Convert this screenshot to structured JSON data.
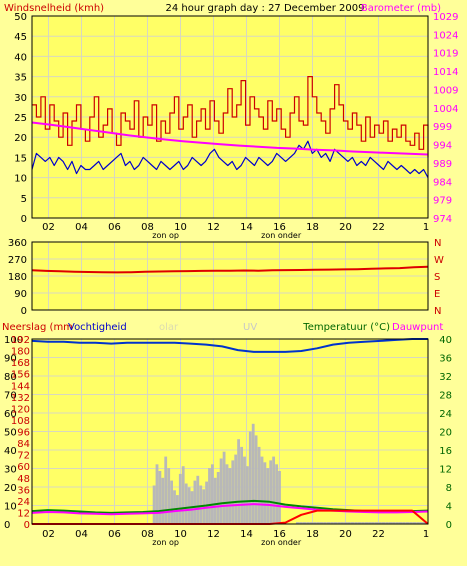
{
  "colors": {
    "bg": "#ffff99",
    "plot_bg": "#ffff66",
    "grid": "#d8d8c0",
    "wind": "#cc0000",
    "avg_wind": "#0000cc",
    "baro": "#ff00ff",
    "dir": "#dd0000",
    "humidity": "#0033cc",
    "solar": "#b8b8b8",
    "temp": "#008800",
    "dew": "#ff00ff",
    "rain": "#ff0000",
    "right_axis_green": "#006600"
  },
  "chart_data": [
    {
      "type": "line",
      "title": "24 hour graph day : 27 December 2009",
      "ylabel_left": "Windsnelheid (kmh)",
      "ylabel_right": "Barometer (mb)",
      "x_ticks": [
        "02",
        "04",
        "06",
        "08",
        "10",
        "12",
        "14",
        "16",
        "18",
        "20",
        "22",
        "1"
      ],
      "x_markers": [
        "zon op",
        "zon onder"
      ],
      "x_range": [
        1,
        25
      ],
      "y_left_ticks": [
        "0",
        "5",
        "10",
        "15",
        "20",
        "25",
        "30",
        "35",
        "40",
        "45",
        "50"
      ],
      "y_left_range": [
        0,
        50
      ],
      "y_right_ticks": [
        "974",
        "979",
        "984",
        "989",
        "994",
        "999",
        "1004",
        "1009",
        "1014",
        "1019",
        "1024",
        "1029"
      ],
      "y_right_range": [
        974,
        1029
      ],
      "grid": true,
      "series": [
        {
          "name": "Windsnelheid (kmh)",
          "color": "#cc0000",
          "x_start": 1,
          "x_end": 25,
          "values": [
            28,
            25,
            30,
            22,
            28,
            24,
            20,
            26,
            18,
            24,
            28,
            22,
            19,
            25,
            30,
            20,
            23,
            27,
            21,
            18,
            26,
            24,
            22,
            29,
            20,
            25,
            23,
            28,
            19,
            24,
            21,
            26,
            30,
            22,
            25,
            28,
            20,
            24,
            27,
            22,
            29,
            24,
            21,
            26,
            32,
            25,
            28,
            34,
            23,
            30,
            27,
            25,
            22,
            29,
            24,
            27,
            22,
            20,
            26,
            30,
            24,
            23,
            35,
            30,
            26,
            24,
            21,
            27,
            33,
            28,
            24,
            22,
            26,
            23,
            19,
            25,
            20,
            23,
            21,
            24,
            19,
            22,
            20,
            23,
            19,
            18,
            21,
            17,
            23,
            15
          ]
        },
        {
          "name": "Gemiddelde wind",
          "color": "#0000cc",
          "x_start": 1,
          "x_end": 25,
          "values": [
            12,
            16,
            15,
            14,
            15,
            13,
            15,
            14,
            12,
            14,
            11,
            13,
            12,
            12,
            13,
            14,
            12,
            13,
            14,
            15,
            16,
            13,
            14,
            12,
            13,
            15,
            14,
            13,
            12,
            14,
            13,
            12,
            13,
            14,
            12,
            13,
            15,
            14,
            13,
            14,
            16,
            17,
            15,
            14,
            13,
            14,
            12,
            13,
            15,
            14,
            13,
            15,
            14,
            13,
            14,
            16,
            15,
            14,
            15,
            16,
            18,
            17,
            19,
            16,
            17,
            15,
            16,
            14,
            17,
            16,
            15,
            14,
            15,
            13,
            14,
            13,
            15,
            14,
            13,
            12,
            14,
            13,
            12,
            13,
            12,
            11,
            12,
            11,
            12,
            10
          ]
        },
        {
          "name": "Barometer (mb)",
          "color": "#ff00ff",
          "axis": "right",
          "x_start": 1,
          "x_end": 25,
          "values": [
            1000.0,
            999.4,
            998.7,
            998.0,
            997.3,
            996.6,
            996.0,
            995.4,
            994.9,
            994.5,
            994.1,
            993.7,
            993.4,
            993.1,
            992.9,
            992.6,
            992.4,
            992.1,
            991.9,
            991.7,
            991.5,
            991.3
          ]
        }
      ]
    },
    {
      "type": "line",
      "x_range": [
        1,
        25
      ],
      "y_left_ticks": [
        "0",
        "90",
        "180",
        "270",
        "360"
      ],
      "y_left_range": [
        0,
        360
      ],
      "y_right_ticks": [
        "N",
        "W",
        "S",
        "E",
        "N"
      ],
      "grid": true,
      "series": [
        {
          "name": "Windrichting",
          "color": "#dd0000",
          "x_start": 1,
          "x_end": 25,
          "values": [
            210,
            207,
            205,
            203,
            201,
            200,
            199,
            200,
            202,
            204,
            205,
            206,
            207,
            208,
            208,
            209,
            208,
            210,
            211,
            212,
            213,
            214,
            215,
            216,
            218,
            220,
            222,
            226,
            229
          ]
        }
      ]
    },
    {
      "type": "line",
      "legend": [
        "Neerslag (mm",
        "Vochtigheid",
        "olar",
        "UV",
        "Temperatuur (°C)",
        "Dauwpunt"
      ],
      "x_ticks": [
        "02",
        "04",
        "06",
        "08",
        "10",
        "12",
        "14",
        "16",
        "18",
        "20",
        "22",
        "1"
      ],
      "x_markers": [
        "zon op",
        "zon onder"
      ],
      "x_range": [
        1,
        25
      ],
      "y_left_ticks": [
        "0",
        "10",
        "20",
        "30",
        "40",
        "50",
        "60",
        "70",
        "80",
        "90",
        "100"
      ],
      "y_left_range": [
        0,
        100
      ],
      "y_left2_ticks": [
        "0",
        "12",
        "24",
        "36",
        "48",
        "60",
        "72",
        "84",
        "96",
        "108",
        "120",
        "132",
        "144",
        "156",
        "168",
        "180",
        "192"
      ],
      "y_left2_range": [
        0,
        192
      ],
      "y_right_ticks": [
        "0",
        "4",
        "8",
        "12",
        "16",
        "20",
        "24",
        "28",
        "32",
        "36",
        "40"
      ],
      "y_right_range": [
        0,
        40
      ],
      "grid": true,
      "series": [
        {
          "name": "Vochtigheid",
          "color": "#0033cc",
          "x_start": 1,
          "x_end": 25,
          "values": [
            99,
            98.5,
            98.5,
            98,
            98,
            97.5,
            98,
            98,
            98,
            98,
            97.5,
            97,
            96,
            94,
            93,
            93,
            93,
            93.5,
            95,
            97,
            98,
            98.5,
            99,
            99.5,
            100,
            100
          ]
        },
        {
          "name": "Temperatuur (°C)",
          "color": "#008800",
          "axis": "right",
          "x_start": 1,
          "x_end": 25,
          "values": [
            2.8,
            3.0,
            2.9,
            2.7,
            2.5,
            2.4,
            2.5,
            2.6,
            2.8,
            3.2,
            3.6,
            4.0,
            4.5,
            4.8,
            5.0,
            4.8,
            4.2,
            3.8,
            3.5,
            3.2,
            3.0,
            2.8,
            2.7,
            2.7,
            2.8,
            2.9
          ]
        },
        {
          "name": "Dauwpunt",
          "color": "#ff00ff",
          "axis": "right",
          "x_start": 1,
          "x_end": 25,
          "values": [
            2.4,
            2.6,
            2.5,
            2.3,
            2.2,
            2.1,
            2.2,
            2.3,
            2.4,
            2.8,
            3.1,
            3.5,
            3.9,
            4.1,
            4.3,
            4.1,
            3.7,
            3.4,
            3.1,
            2.9,
            2.7,
            2.6,
            2.5,
            2.5,
            2.6,
            2.7
          ]
        },
        {
          "name": "Neerslag",
          "color": "#ff0000",
          "axis": "right",
          "x_start": 1,
          "x_end": 25,
          "values": [
            0,
            0,
            0,
            0,
            0,
            0,
            0,
            0,
            0,
            0,
            0,
            0,
            0,
            0,
            0,
            0,
            0.3,
            2.0,
            2.9,
            2.9,
            2.9,
            2.9,
            2.9,
            2.9,
            2.9,
            0
          ]
        },
        {
          "name": "olar",
          "color": "#b8b8b8",
          "axis": "left2",
          "type": "bar",
          "x_start": 8.4,
          "x_end": 16,
          "values": [
            40,
            62,
            55,
            48,
            70,
            58,
            45,
            35,
            30,
            52,
            60,
            42,
            38,
            34,
            45,
            50,
            40,
            36,
            44,
            58,
            62,
            48,
            54,
            68,
            75,
            62,
            58,
            66,
            72,
            88,
            80,
            70,
            60,
            96,
            104,
            92,
            80,
            70,
            64,
            58,
            66,
            70,
            62,
            55
          ]
        },
        {
          "name": "UV",
          "color": "#b8b8b8",
          "axis": "left2",
          "type": "bar",
          "x_start": 17.1,
          "x_end": 24.8,
          "values": [
            2,
            2,
            2,
            2,
            2,
            2,
            2,
            2,
            2,
            2,
            2,
            2,
            2,
            2,
            2,
            2,
            2,
            2,
            2,
            2,
            2,
            2,
            2,
            2,
            2,
            2,
            2,
            2,
            2,
            2,
            2,
            2,
            2,
            2,
            2,
            2,
            2,
            2
          ]
        }
      ]
    }
  ]
}
